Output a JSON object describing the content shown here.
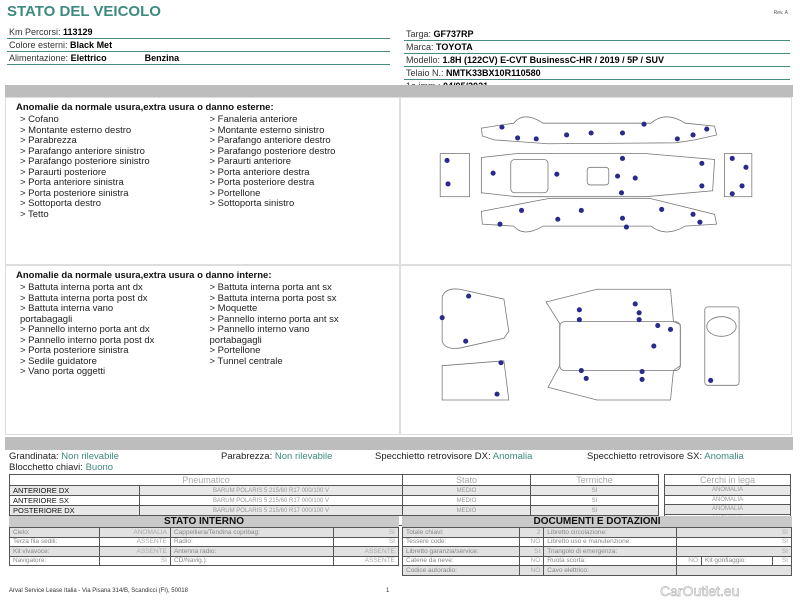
{
  "header": {
    "title": "STATO DEL VEICOLO",
    "rev": "Rev. A"
  },
  "vehicle": {
    "km_label": "Km Percorsi:",
    "km": "113129",
    "color_label": "Colore esterni:",
    "color": "Black Met",
    "fuel_label": "Alimentazione:",
    "fuel": "Elettrico",
    "fuel2": "Benzina",
    "plate_label": "Targa:",
    "plate": "GF737RP",
    "brand_label": "Marca:",
    "brand": "TOYOTA",
    "model_label": "Modello:",
    "model": "1.8H (122CV) E-CVT BusinessC-HR / 2019 / 5P / SUV",
    "vin_label": "Telaio N.:",
    "vin": "NMTK33BX10R110580",
    "reg_label": "1a imm.:",
    "reg": "04/05/2021"
  },
  "exterior": {
    "title": "Anomalie da normale usura,extra usura o danno esterne:",
    "col1": [
      "> Cofano",
      "> Montante esterno destro",
      "> Parabrezza",
      "> Parafango anteriore sinistro",
      "> Parafango posteriore sinistro",
      "> Paraurti posteriore",
      "> Porta anteriore sinistra",
      "> Porta posteriore sinistra",
      "> Sottoporta destro",
      "> Tetto"
    ],
    "col2": [
      "> Fanaleria anteriore",
      "> Montante esterno sinistro",
      "> Parafango anteriore destro",
      "> Parafango posteriore destro",
      "> Paraurti anteriore",
      "> Porta anteriore destra",
      "> Porta posteriore destra",
      "> Portellone",
      "> Sottoporta sinistro"
    ]
  },
  "interior": {
    "title": "Anomalie da normale usura,extra usura o danno interne:",
    "col1": [
      "> Battuta interna porta ant dx",
      "> Battuta interna porta post dx",
      "> Battuta interna vano",
      "portabagagli",
      "> Pannello interno porta ant dx",
      "> Pannello interno porta post dx",
      "> Porta posteriore sinistra",
      "> Sedile guidatore",
      "> Vano porta oggetti"
    ],
    "col2": [
      "> Battuta interna porta ant sx",
      "> Battuta interna porta post sx",
      "> Moquette",
      "> Pannello interno porta ant sx",
      "> Pannello interno vano",
      "portabagagli",
      "> Portellone",
      "> Tunnel centrale"
    ]
  },
  "checks": {
    "hail_label": "Grandinata:",
    "hail": "Non rilevabile",
    "windshield_label": "Parabrezza:",
    "windshield": "Non rilevabile",
    "mirror_dx_label": "Specchietto retrovisore DX:",
    "mirror_dx": "Anomalia",
    "mirror_sx_label": "Specchietto retrovisore SX:",
    "mirror_sx": "Anomalia",
    "keys_label": "Blocchetto chiavi:",
    "keys": "Buono"
  },
  "tires": {
    "headers": [
      "Pneumatico",
      "Stato",
      "Termiche",
      "Cerchi in lega"
    ],
    "rows": [
      {
        "pos": "ANTERIORE DX",
        "tire": "BARUM POLARIS 5 215/60 R17 000/100 V",
        "state": "MEDIO",
        "thermal": "SI",
        "rim": "ANOMALIA"
      },
      {
        "pos": "ANTERIORE SX",
        "tire": "BARUM POLARIS 5 215/60 R17 000/100 V",
        "state": "MEDIO",
        "thermal": "SI",
        "rim": "ANOMALIA"
      },
      {
        "pos": "POSTERIORE DX",
        "tire": "BARUM POLARIS 5 215/60 R17 000/100 V",
        "state": "MEDIO",
        "thermal": "SI",
        "rim": "ANOMALIA"
      },
      {
        "pos": "POSTERIORE SX",
        "tire": "BARUM POLARIS 5 215/60 R17 000/100 V",
        "state": "MEDIO",
        "thermal": "SI",
        "rim": "ANOMALIA"
      }
    ]
  },
  "stato_interno": {
    "title": "STATO INTERNO",
    "rows": [
      [
        "Cielo:",
        "ANOMALIA",
        "Cappelliera/Tendina copribag:",
        "SI"
      ],
      [
        "Terza fila sedili:",
        "ASSENTE",
        "Radio:",
        "SI"
      ],
      [
        "Kit vivavoce:",
        "ASSENTE",
        "Antenna radio:",
        "ASSENTE"
      ],
      [
        "Navigatore:",
        "SI",
        "CD/Navig.):",
        "ASSENTE"
      ]
    ]
  },
  "documenti": {
    "title": "DOCUMENTI E DOTAZIONI",
    "rows": [
      [
        "Totale chiavi:",
        "2",
        "Libretto circolazione:",
        "SI"
      ],
      [
        "Tessere code:",
        "NO",
        "Libretto uso e manutenzione:",
        "SI"
      ],
      [
        "Libretto garanzia/service:",
        "SI",
        "Triangolo di emergenza:",
        "SI"
      ],
      [
        "Catene da neve:",
        "NO",
        "Ruota scorta:",
        "NO"
      ],
      [
        "Codice autoradio:",
        "NO",
        "Cavo elettrico:",
        ""
      ]
    ],
    "extra_label": "Kit gonfiaggio:",
    "extra_value": "SI"
  },
  "footer": {
    "address": "Arval Service Lease Italia - Via Pisana 314/B, Scandicci (FI), 50018",
    "page": "1",
    "watermark": "CarOutlet.eu"
  },
  "colors": {
    "accent": "#3e8a80",
    "damage_dot": "#2a2a8e",
    "bar": "#bdbdbd"
  }
}
